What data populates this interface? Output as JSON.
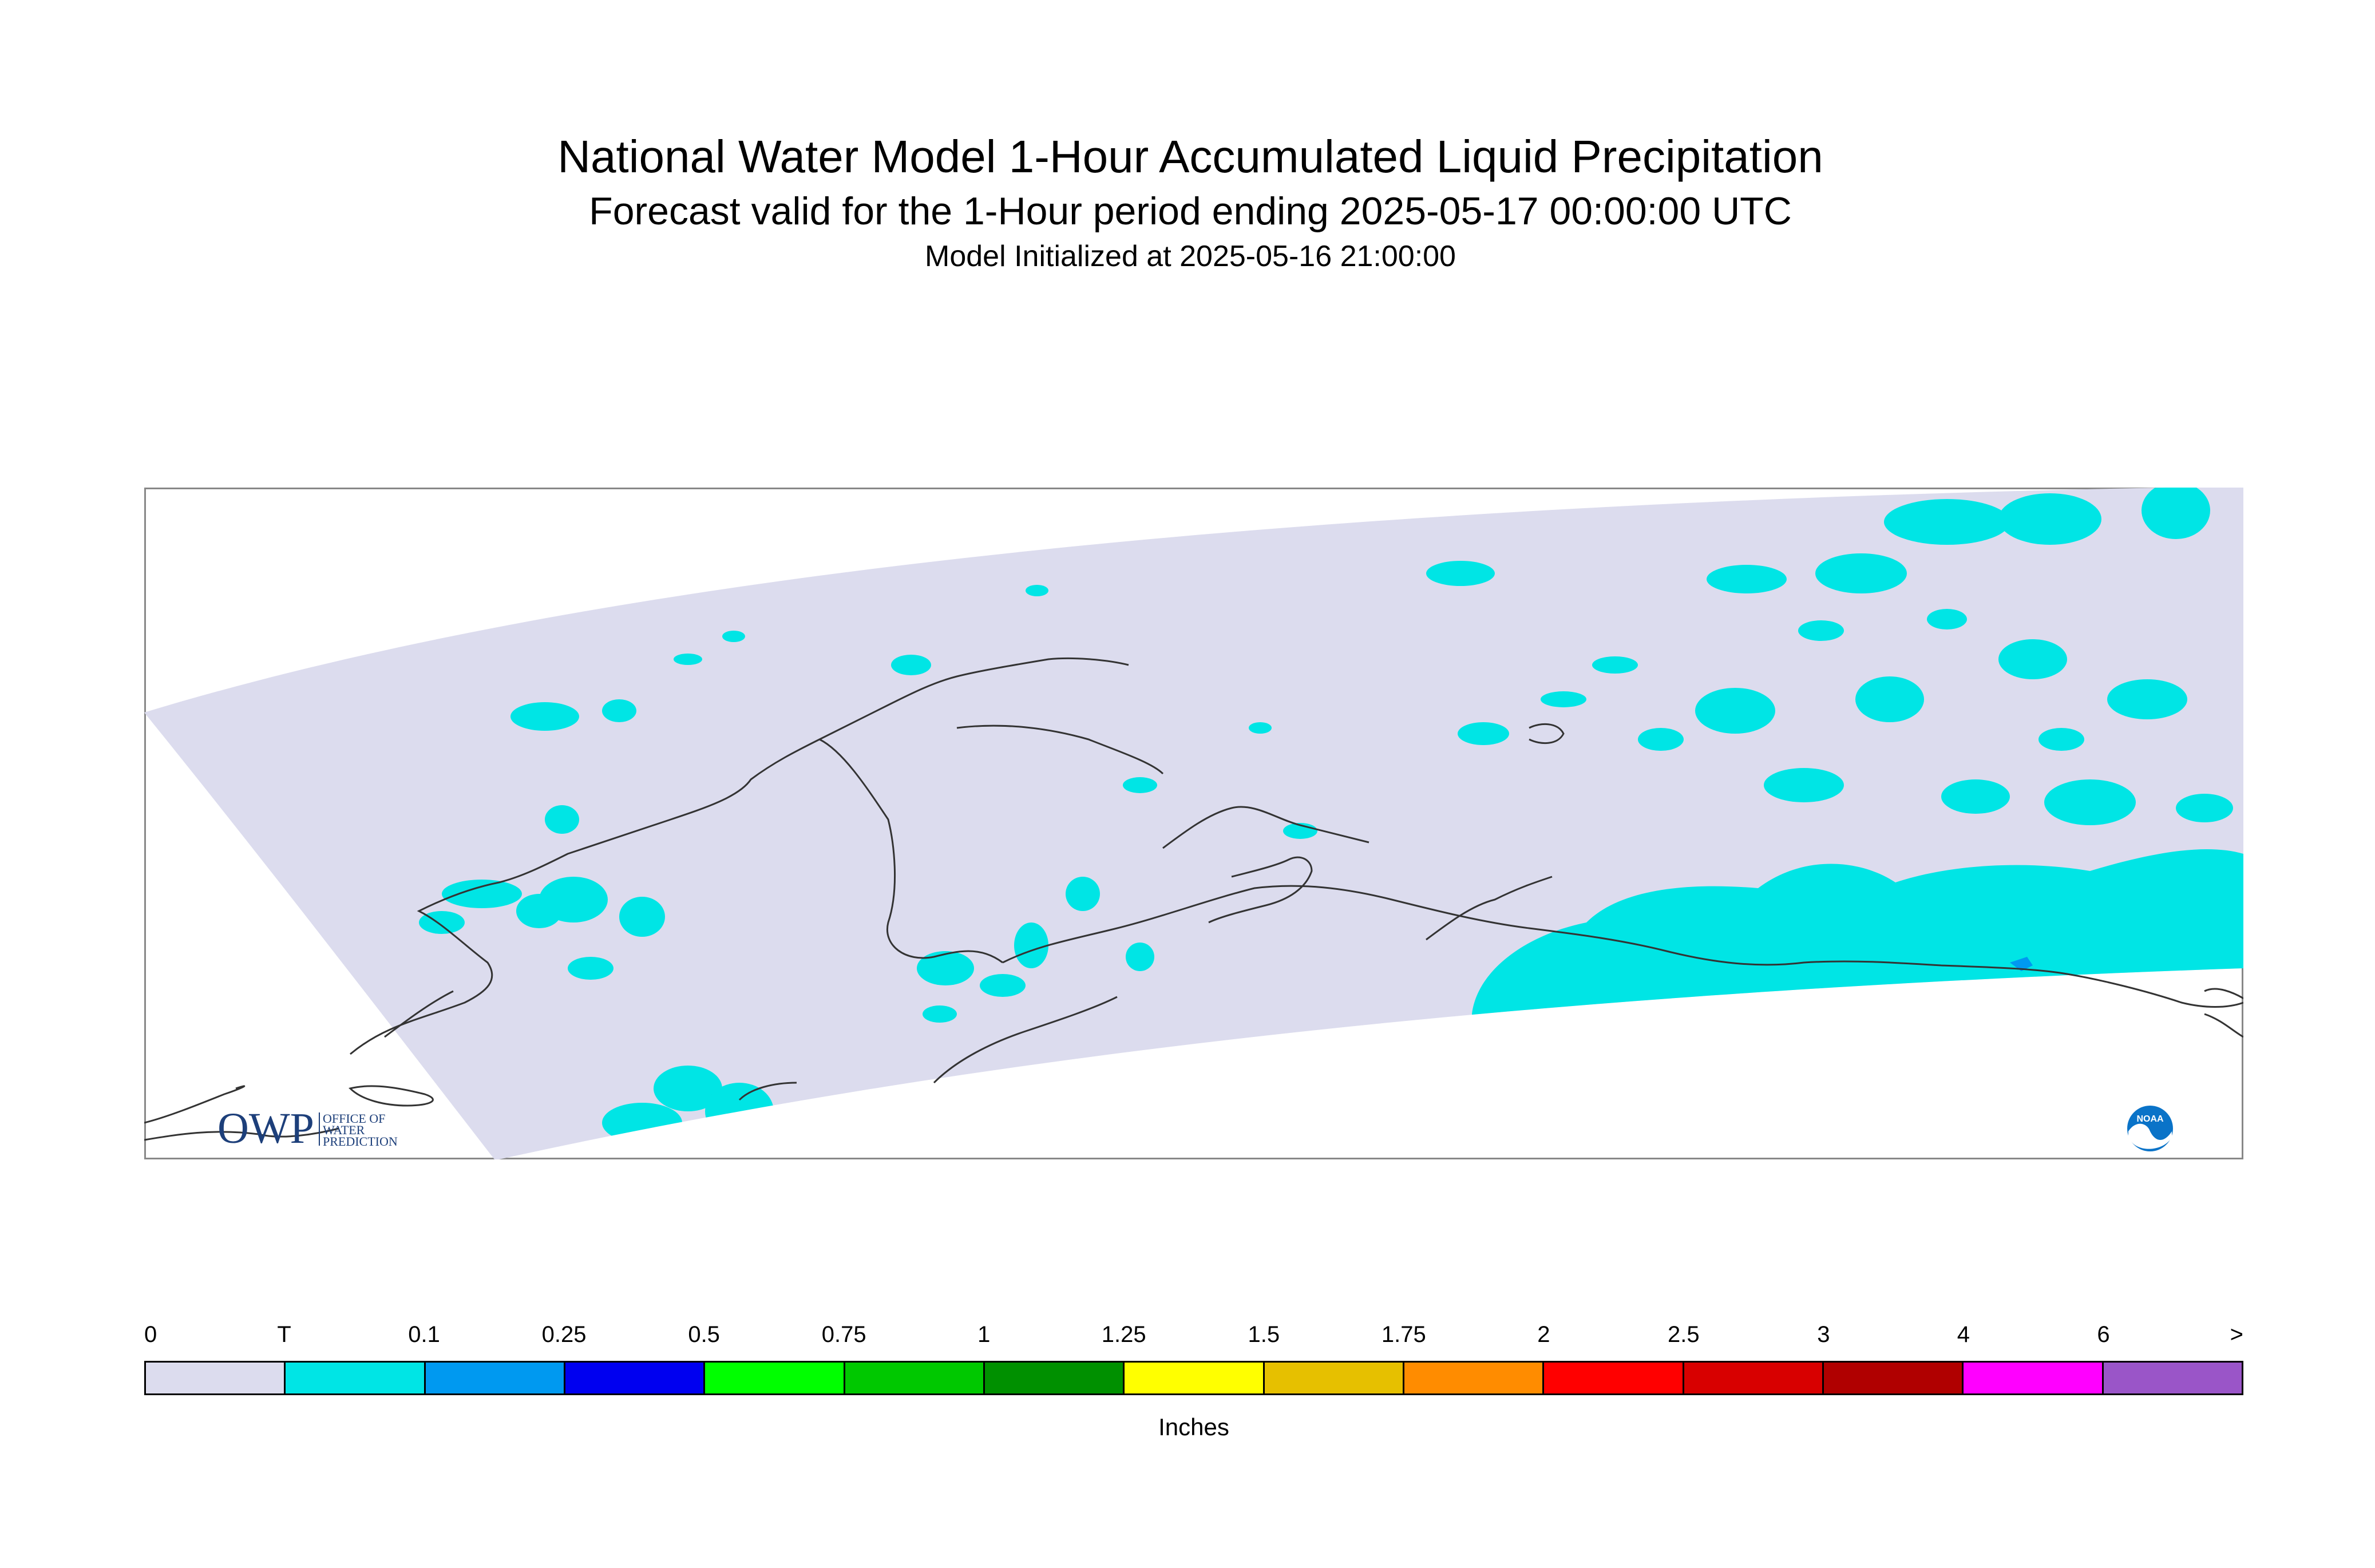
{
  "title": "National Water Model 1-Hour Accumulated Liquid Precipitation",
  "subtitle": "Forecast valid for the 1-Hour period ending 2025-05-17 00:00:00 UTC",
  "init_line": "Model Initialized at 2025-05-16 21:00:00",
  "logos": {
    "owp_text": "OWP",
    "owp_sub1": "OFFICE OF",
    "owp_sub2": "WATER",
    "owp_sub3": "PREDICTION",
    "noaa_text": "NOAA"
  },
  "legend": {
    "units": "Inches",
    "labels": [
      "0",
      "T",
      "0.1",
      "0.25",
      "0.5",
      "0.75",
      "1",
      "1.25",
      "1.5",
      "1.75",
      "2",
      "2.5",
      "3",
      "4",
      "6",
      ">"
    ],
    "colors": [
      "#dcdcee",
      "#00e5e5",
      "#0099f0",
      "#0000f0",
      "#00ff00",
      "#00c800",
      "#009000",
      "#ffff00",
      "#e6c000",
      "#ff8c00",
      "#ff0000",
      "#d80000",
      "#b00000",
      "#ff00ff",
      "#9a55c8"
    ]
  },
  "colors": {
    "domain_fill": "#dcdcee",
    "trace_fill": "#00e5e5",
    "light_rain": "#0099f0",
    "coastline": "#333333",
    "map_border": "#888888"
  }
}
